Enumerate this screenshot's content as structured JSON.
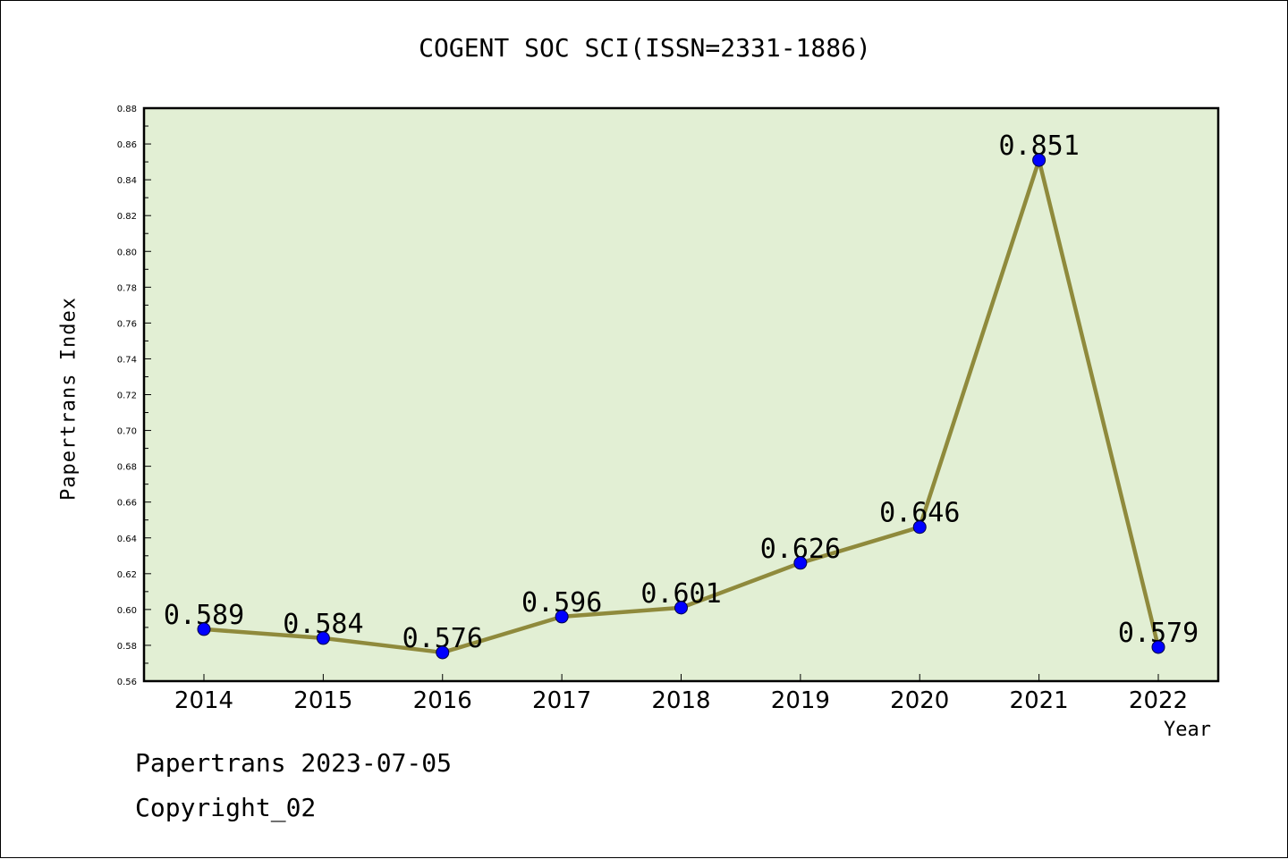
{
  "title": "COGENT SOC SCI(ISSN=2331-1886)",
  "footer": {
    "date_line": "Papertrans 2023-07-05",
    "copyright": "Copyright_02"
  },
  "colors": {
    "plot_background": "#e2efd4",
    "line": "#8f8a3c",
    "marker": "#0000ff",
    "axis": "#000000"
  },
  "chart_data": {
    "type": "line",
    "title": "COGENT SOC SCI(ISSN=2331-1886)",
    "xlabel": "Year",
    "ylabel": "Papertrans Index",
    "categories": [
      "2014",
      "2015",
      "2016",
      "2017",
      "2018",
      "2019",
      "2020",
      "2021",
      "2022"
    ],
    "values": [
      0.589,
      0.584,
      0.576,
      0.596,
      0.601,
      0.626,
      0.646,
      0.851,
      0.579
    ],
    "data_labels": [
      "0.589",
      "0.584",
      "0.576",
      "0.596",
      "0.601",
      "0.626",
      "0.646",
      "0.851",
      "0.579"
    ],
    "ylim": [
      0.56,
      0.88
    ],
    "yticks": [
      "0.56",
      "0.58",
      "0.60",
      "0.62",
      "0.64",
      "0.66",
      "0.68",
      "0.70",
      "0.72",
      "0.74",
      "0.76",
      "0.78",
      "0.80",
      "0.82",
      "0.84",
      "0.86",
      "0.88"
    ],
    "grid": false,
    "legend": "none"
  }
}
